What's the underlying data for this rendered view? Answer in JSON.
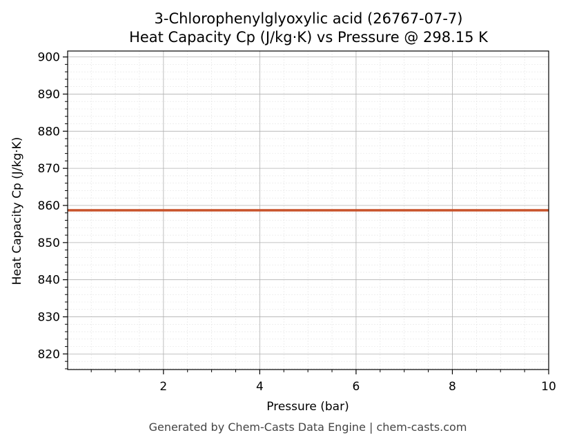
{
  "chart_data": {
    "type": "line",
    "title": "3-Chlorophenylglyoxylic acid (26767-07-7)",
    "subtitle": "Heat Capacity Cp (J/kg·K) vs Pressure @ 298.15 K",
    "xlabel": "Pressure (bar)",
    "ylabel": "Heat Capacity Cp (J/kg·K)",
    "xlim": [
      0.01,
      10
    ],
    "ylim": [
      815.8,
      901.6
    ],
    "x_ticks": [
      2,
      4,
      6,
      8,
      10
    ],
    "y_ticks": [
      820,
      830,
      840,
      850,
      860,
      870,
      880,
      890,
      900
    ],
    "grid": true,
    "minor_grid": true,
    "series": [
      {
        "color": "#c8522a",
        "x": [
          0.01,
          10
        ],
        "y": [
          858.7,
          858.7
        ]
      }
    ]
  },
  "footer": "Generated by Chem-Casts Data Engine | chem-casts.com"
}
